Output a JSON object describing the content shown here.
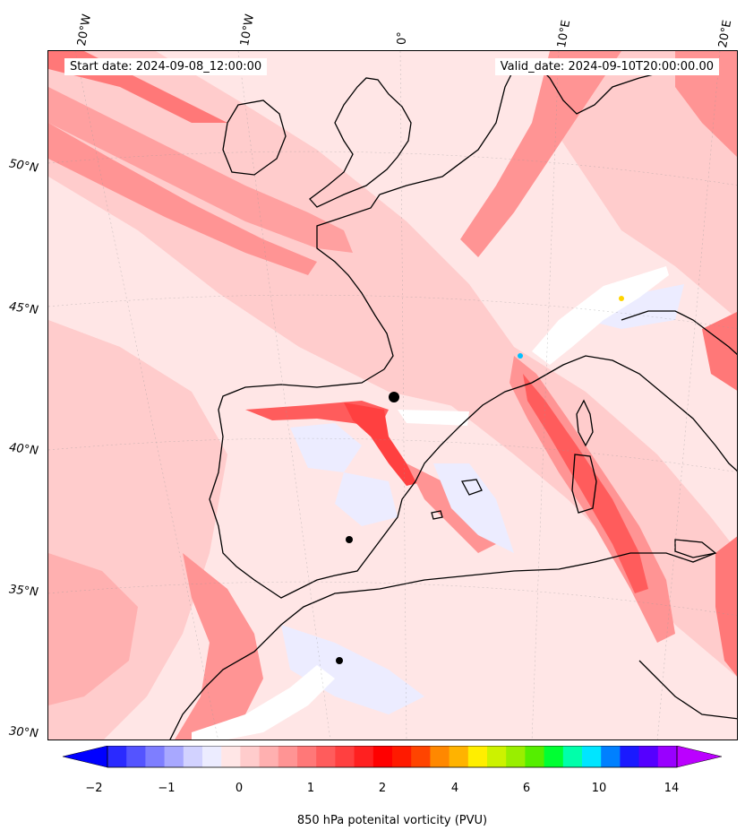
{
  "header": {
    "start_date": "Start date: 2024-09-08_12:00:00",
    "valid_date": "Valid_date: 2024-09-10T20:00:00.00"
  },
  "longitude_labels": [
    "20°W",
    "10°W",
    "0°",
    "10°E",
    "20°E"
  ],
  "latitude_labels": [
    "50°N",
    "45°N",
    "40°N",
    "35°N",
    "30°N"
  ],
  "colorbar": {
    "label": "850 hPa potenital vorticity (PVU)",
    "ticks": [
      "−2",
      "−1",
      "0",
      "1",
      "2",
      "4",
      "6",
      "10",
      "14"
    ],
    "colors": [
      "#0000ff",
      "#2a2aff",
      "#5454ff",
      "#7e7eff",
      "#a8a8ff",
      "#d2d2ff",
      "#ececff",
      "#ffe6e6",
      "#ffcccc",
      "#ffb0b0",
      "#ff9494",
      "#ff7878",
      "#ff5c5c",
      "#ff4040",
      "#ff2020",
      "#ff0000",
      "#ff1a00",
      "#ff4400",
      "#ff8800",
      "#ffb300",
      "#ffee00",
      "#ccf200",
      "#99ee00",
      "#55ee00",
      "#00ff33",
      "#00ffaa",
      "#00e5ff",
      "#0080ff",
      "#1a1aff",
      "#5500ff",
      "#9900ff",
      "#bb00ff"
    ]
  },
  "map": {
    "background_color": "#ffe6e6",
    "coastline_color": "#000000"
  }
}
